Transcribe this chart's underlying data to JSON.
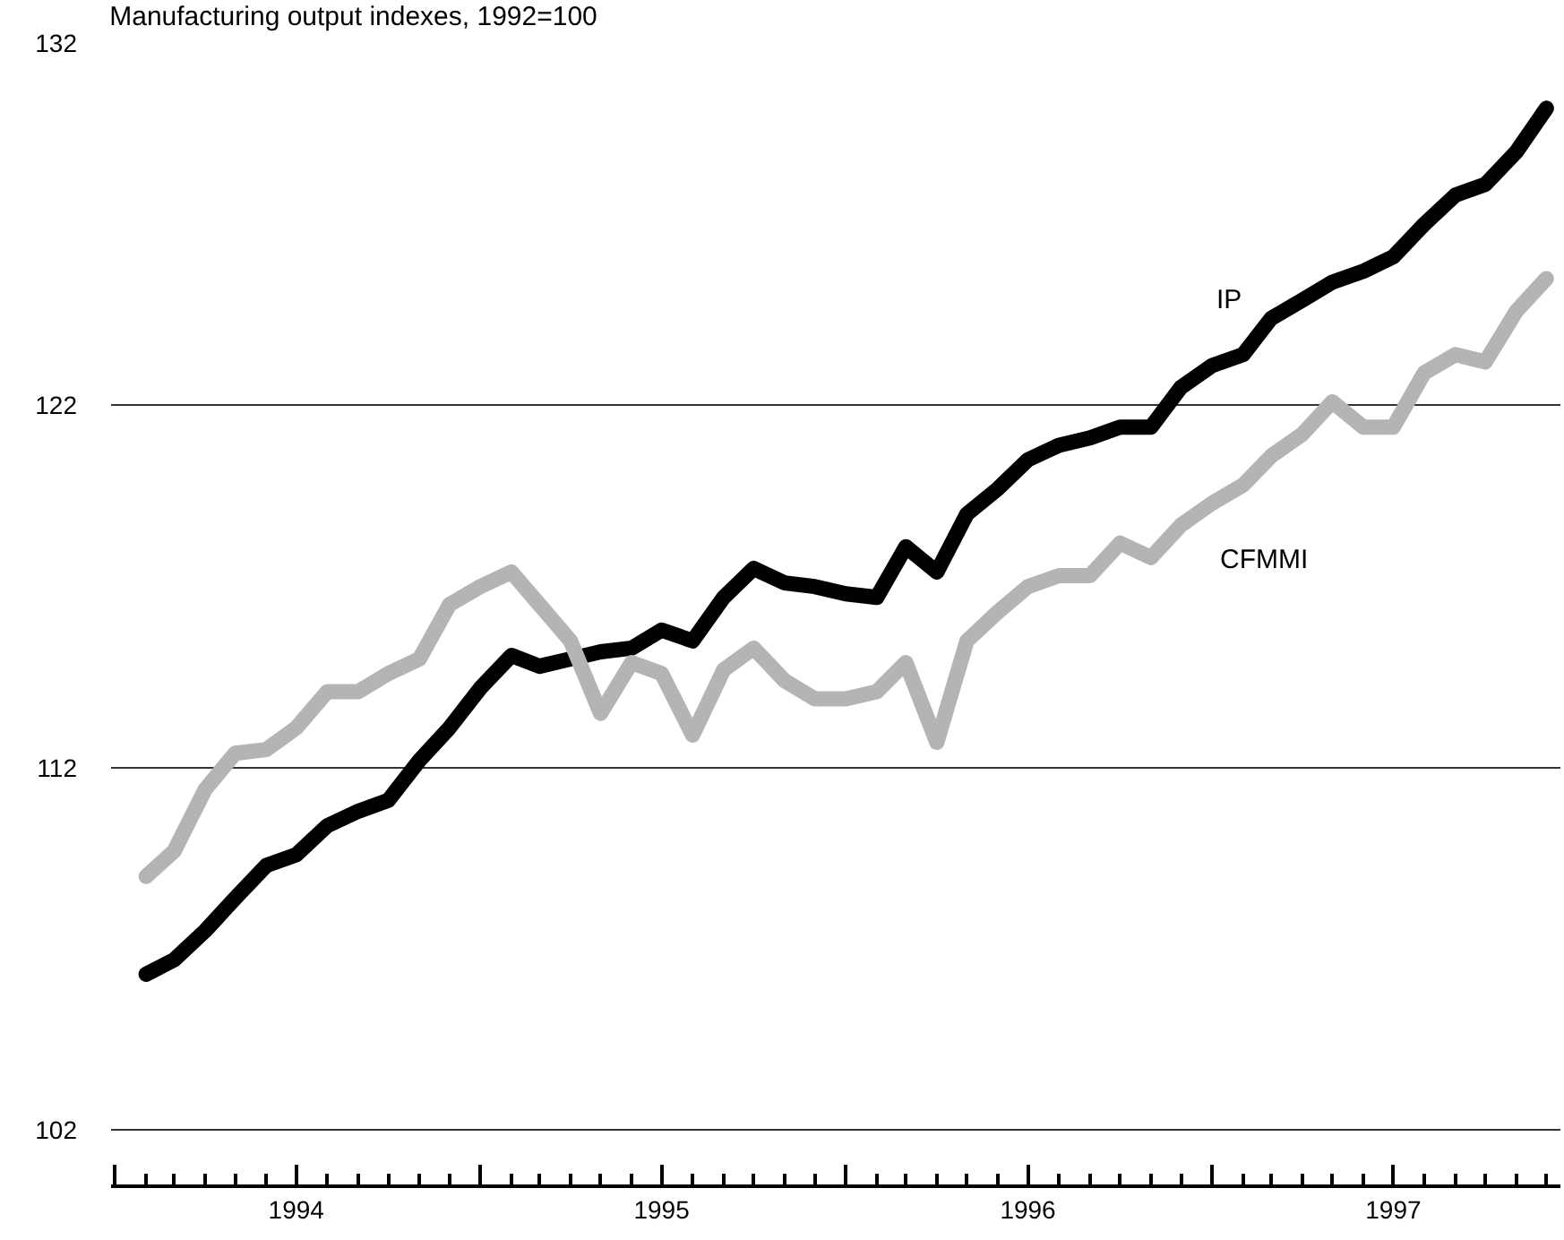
{
  "chart_data": {
    "type": "line",
    "title": "Manufacturing output indexes, 1992=100",
    "x": [
      "1994-02",
      "1994-03",
      "1994-04",
      "1994-05",
      "1994-06",
      "1994-07",
      "1994-08",
      "1994-09",
      "1994-10",
      "1994-11",
      "1994-12",
      "1995-01",
      "1995-02",
      "1995-03",
      "1995-04",
      "1995-05",
      "1995-06",
      "1995-07",
      "1995-08",
      "1995-09",
      "1995-10",
      "1995-11",
      "1995-12",
      "1996-01",
      "1996-02",
      "1996-03",
      "1996-04",
      "1996-05",
      "1996-06",
      "1996-07",
      "1996-08",
      "1996-09",
      "1996-10",
      "1996-11",
      "1996-12",
      "1997-01",
      "1997-02",
      "1997-03",
      "1997-04",
      "1997-05",
      "1997-06",
      "1997-07",
      "1997-08",
      "1997-09",
      "1997-10",
      "1997-11",
      "1997-12"
    ],
    "series": [
      {
        "name": "IP",
        "color": "#000000",
        "values": [
          106.3,
          106.7,
          107.5,
          108.4,
          109.3,
          109.6,
          110.4,
          110.8,
          111.1,
          112.2,
          113.1,
          114.2,
          115.1,
          114.8,
          115.0,
          115.2,
          115.3,
          115.8,
          115.5,
          116.7,
          117.5,
          117.1,
          117.0,
          116.8,
          116.7,
          118.1,
          117.4,
          119.0,
          119.7,
          120.5,
          120.9,
          121.1,
          121.4,
          121.4,
          122.5,
          123.1,
          123.4,
          124.4,
          124.9,
          125.4,
          125.7,
          126.1,
          127.0,
          127.8,
          128.1,
          129.0,
          130.2
        ]
      },
      {
        "name": "CFMMI",
        "color": "#b4b4b4",
        "values": [
          109.0,
          109.7,
          111.4,
          112.4,
          112.5,
          113.1,
          114.1,
          114.1,
          114.6,
          115.0,
          116.5,
          117.0,
          117.4,
          116.5,
          115.5,
          113.5,
          114.9,
          114.6,
          112.9,
          114.7,
          115.3,
          114.4,
          113.9,
          113.9,
          114.1,
          114.9,
          112.7,
          115.5,
          116.3,
          117.0,
          117.3,
          117.3,
          118.2,
          117.8,
          118.7,
          119.3,
          119.8,
          120.6,
          121.2,
          122.1,
          121.4,
          121.4,
          122.9,
          123.4,
          123.2,
          124.6,
          125.5
        ]
      }
    ],
    "xlim": [
      "1993-12-28",
      "1997-12-15"
    ],
    "xticks": [
      {
        "value": "1994-01",
        "label": null
      },
      {
        "value": "1994-07",
        "label": "1994"
      },
      {
        "value": "1995-01",
        "label": null
      },
      {
        "value": "1995-07",
        "label": "1995"
      },
      {
        "value": "1996-01",
        "label": null
      },
      {
        "value": "1996-07",
        "label": "1996"
      },
      {
        "value": "1997-01",
        "label": null
      },
      {
        "value": "1997-07",
        "label": "1997"
      }
    ],
    "ylim": [
      100.5,
      132
    ],
    "yticks": [
      102,
      112,
      122,
      132
    ],
    "grid": "y",
    "legend": false,
    "line_style": "solid"
  }
}
